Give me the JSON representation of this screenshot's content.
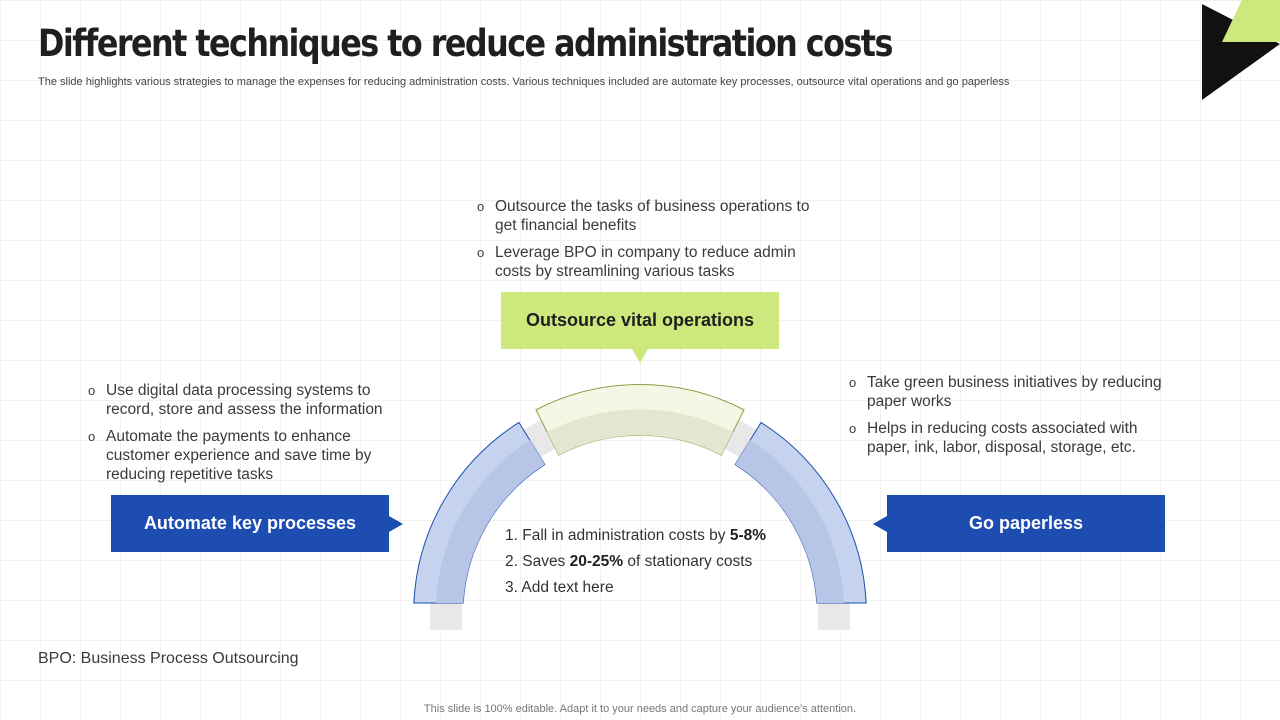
{
  "header": {
    "title": "Different techniques to reduce administration costs",
    "subtitle": "The slide highlights various strategies to manage the expenses for reducing administration costs. Various techniques included are automate key processes, outsource vital operations and go paperless"
  },
  "colors": {
    "green": "#cde97e",
    "blue": "#1d4db0",
    "light_blue": "#c5d3ee",
    "light_green": "#e8efd0"
  },
  "top": {
    "label": "Outsource vital operations",
    "bullets": [
      "Outsource the tasks of business operations to get financial benefits",
      "Leverage BPO in company to reduce admin costs by streamlining various tasks"
    ]
  },
  "left": {
    "label": "Automate key processes",
    "bullets": [
      "Use digital data processing systems to record, store and assess the information",
      "Automate the payments to enhance customer experience and save time by reducing repetitive tasks"
    ]
  },
  "right": {
    "label": "Go paperless",
    "bullets": [
      "Take green business initiatives by reducing paper works",
      "Helps in reducing costs associated with paper, ink, labor, disposal, storage, etc."
    ]
  },
  "center": {
    "items": [
      {
        "pre": "1. Fall in administration costs by ",
        "bold": "5-8%",
        "post": ""
      },
      {
        "pre": "2. Saves ",
        "bold": "20-25%",
        "post": " of stationary costs"
      },
      {
        "pre": "3. Add text here",
        "bold": "",
        "post": ""
      }
    ]
  },
  "footnote": "BPO: Business Process Outsourcing",
  "footer": "This slide is 100% editable. Adapt it to your needs and capture your audience’s attention."
}
